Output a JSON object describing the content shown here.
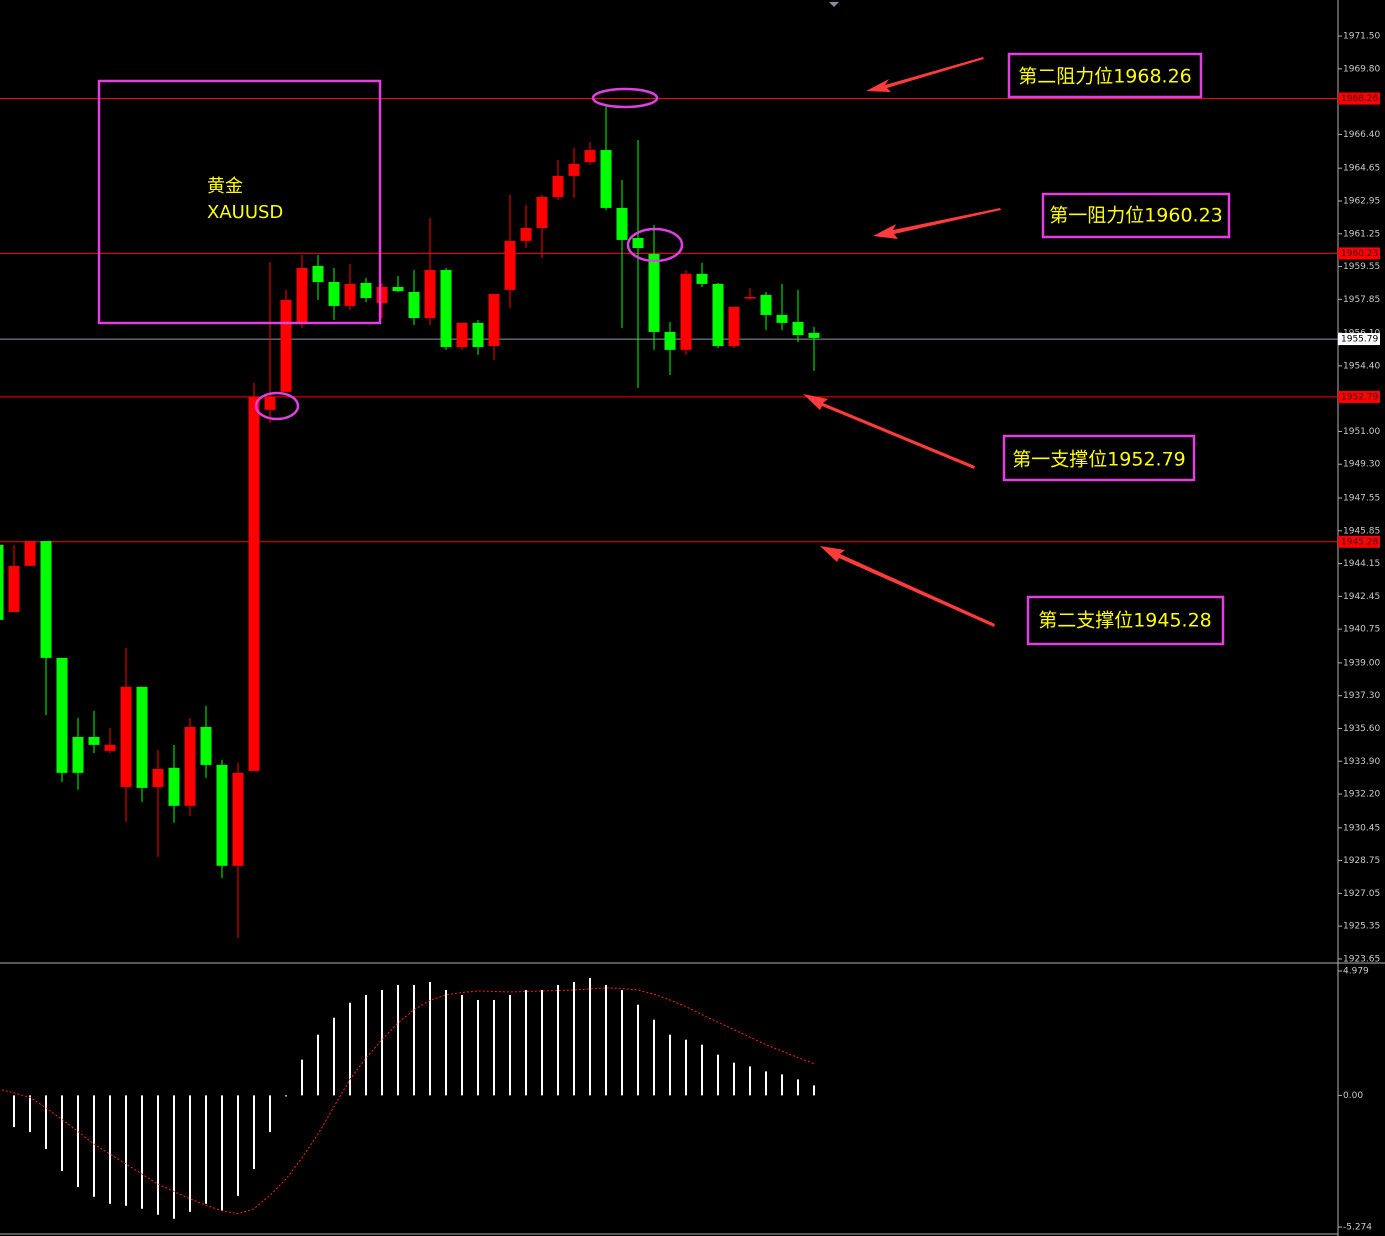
{
  "chart_data": [
    {
      "type": "candlestick",
      "open": [
        1945.12,
        1941.64,
        1944.03,
        1945.32,
        1939.26,
        1935.16,
        1935.16,
        1934.44,
        1932.57,
        1937.76,
        1932.57,
        1933.56,
        1931.59,
        1935.68,
        1933.71,
        1928.48,
        1933.4,
        1952.12,
        1953.05,
        1956.63,
        1959.58,
        1958.75,
        1957.51,
        1958.7,
        1957.66,
        1958.49,
        1958.23,
        1956.88,
        1959.37,
        1955.38,
        1956.63,
        1955.43,
        1958.34,
        1960.88,
        1961.55,
        1963.16,
        1964.25,
        1964.97,
        1965.59,
        1962.59,
        1961.03,
        1960.2,
        1956.16,
        1955.23,
        1959.17,
        1958.65,
        1955.43,
        1957.92,
        1958.08,
        1957.04,
        1956.68,
        1956.11
      ],
      "high": [
        1945.12,
        1945.12,
        1945.32,
        1945.32,
        1939.26,
        1936.15,
        1936.51,
        1935.63,
        1939.78,
        1937.76,
        1934.49,
        1934.75,
        1936.15,
        1936.77,
        1933.97,
        1933.82,
        1953.52,
        1959.79,
        1958.34,
        1960.15,
        1960.15,
        1959.48,
        1959.68,
        1958.96,
        1958.7,
        1959.06,
        1959.37,
        1962.07,
        1959.48,
        1956.63,
        1956.78,
        1958.13,
        1963.26,
        1962.74,
        1963.26,
        1965.08,
        1965.7,
        1966.01,
        1967.87,
        1964.04,
        1966.11,
        1961.71,
        1956.68,
        1959.37,
        1959.74,
        1958.7,
        1957.46,
        1958.44,
        1958.23,
        1958.65,
        1958.34,
        1956.42
      ],
      "low": [
        1941.23,
        1941.64,
        1944.03,
        1936.3,
        1932.83,
        1932.42,
        1934.33,
        1934.33,
        1930.76,
        1931.79,
        1928.94,
        1930.71,
        1931.07,
        1933.04,
        1927.85,
        1924.74,
        1933.4,
        1951.44,
        1953.05,
        1956.37,
        1957.82,
        1956.78,
        1957.3,
        1957.71,
        1956.88,
        1958.23,
        1956.52,
        1956.52,
        1955.23,
        1955.23,
        1954.97,
        1954.71,
        1957.4,
        1960.51,
        1959.99,
        1963.0,
        1963.11,
        1964.82,
        1962.48,
        1956.37,
        1953.26,
        1955.23,
        1953.93,
        1954.97,
        1958.49,
        1955.33,
        1955.33,
        1957.82,
        1956.26,
        1956.26,
        1955.64,
        1954.14
      ],
      "close": [
        1941.23,
        1944.03,
        1945.32,
        1939.26,
        1933.3,
        1933.3,
        1934.75,
        1934.75,
        1937.76,
        1932.52,
        1933.5,
        1931.59,
        1935.68,
        1933.71,
        1928.48,
        1933.3,
        1952.79,
        1952.79,
        1957.82,
        1959.48,
        1958.75,
        1957.51,
        1958.65,
        1957.92,
        1958.49,
        1958.28,
        1956.88,
        1959.37,
        1955.38,
        1956.63,
        1955.38,
        1958.13,
        1960.88,
        1961.55,
        1963.16,
        1964.25,
        1964.87,
        1965.59,
        1962.59,
        1960.93,
        1960.51,
        1956.16,
        1955.23,
        1959.17,
        1958.65,
        1955.43,
        1957.46,
        1957.97,
        1957.04,
        1956.63,
        1956.0,
        1955.85
      ],
      "up_color": "#ff0000",
      "down_color": "#00ff00",
      "ylim": [
        1923.44,
        1973.37
      ],
      "yticks": [
        {
          "value": 1971.5,
          "label": "1971.50"
        },
        {
          "value": 1969.8,
          "label": "1969.80"
        },
        {
          "value": 1966.4,
          "label": "1966.40"
        },
        1964.65,
        1962.95,
        1961.25,
        1959.55,
        1957.85,
        {
          "value": 1956.1,
          "label": "1956.10"
        },
        {
          "value": 1954.4,
          "label": "1954.40"
        },
        {
          "value": 1951,
          "label": "1951.00"
        },
        {
          "value": 1949.3,
          "label": "1949.30"
        },
        1947.55,
        1945.85,
        1944.15,
        1942.45,
        1940.75,
        {
          "value": 1939,
          "label": "1939.00"
        },
        {
          "value": 1937.3,
          "label": "1937.30"
        },
        {
          "value": 1935.6,
          "label": "1935.60"
        },
        {
          "value": 1933.9,
          "label": "1933.90"
        },
        {
          "value": 1932.2,
          "label": "1932.20"
        },
        1930.45,
        1928.75,
        1927.05,
        1925.35,
        1923.65
      ],
      "levels": [
        1968.26,
        1960.23,
        1952.79,
        1945.28
      ],
      "level_color": "#ff0000",
      "current_price": 1955.79,
      "current_color": "#8a9aaa",
      "box": {
        "title": "黄金",
        "symbol": "XAUUSD"
      },
      "annotations": [
        "第二阻力位1968.26",
        "第一阻力位1960.23",
        "第一支撑位1952.79",
        "第二支撑位1945.28"
      ]
    },
    {
      "type": "macd",
      "histogram": [
        null,
        -1.27,
        -1.47,
        -2.15,
        -3.03,
        -3.67,
        -4.06,
        -4.34,
        -4.42,
        -4.54,
        -4.78,
        -4.94,
        -4.66,
        -4.34,
        -4.62,
        -4.02,
        -2.95,
        -1.47,
        0,
        1.43,
        2.43,
        3.11,
        3.71,
        4.02,
        4.22,
        4.42,
        4.42,
        4.54,
        4.22,
        4.02,
        3.82,
        3.82,
        4.02,
        4.22,
        4.22,
        4.42,
        4.54,
        4.7,
        4.42,
        4.22,
        3.63,
        3.03,
        2.43,
        2.23,
        2.03,
        1.63,
        1.31,
        1.16,
        0.96,
        0.84,
        0.64,
        0.4
      ],
      "signal": [
        0.26,
        0.1,
        -0.08,
        -0.5,
        -0.96,
        -1.45,
        -1.95,
        -2.35,
        -2.75,
        -3.15,
        -3.55,
        -3.85,
        -4.14,
        -4.4,
        -4.62,
        -4.74,
        -4.54,
        -4.0,
        -3.35,
        -2.5,
        -1.55,
        -0.45,
        0.64,
        1.5,
        2.23,
        2.9,
        3.43,
        3.8,
        4.02,
        4.12,
        4.18,
        4.16,
        4.14,
        4.16,
        4.18,
        4.2,
        4.22,
        4.26,
        4.3,
        4.28,
        4.22,
        4.05,
        3.82,
        3.55,
        3.23,
        2.93,
        2.63,
        2.33,
        2.03,
        1.77,
        1.51,
        1.27
      ],
      "histogram_color": "#ffffff",
      "signal_color": "#ff2020",
      "ylim": [
        -5.63,
        5.3
      ],
      "yticks": [
        4.979,
        {
          "value": 0,
          "label": "0.00"
        },
        -5.274
      ]
    }
  ]
}
